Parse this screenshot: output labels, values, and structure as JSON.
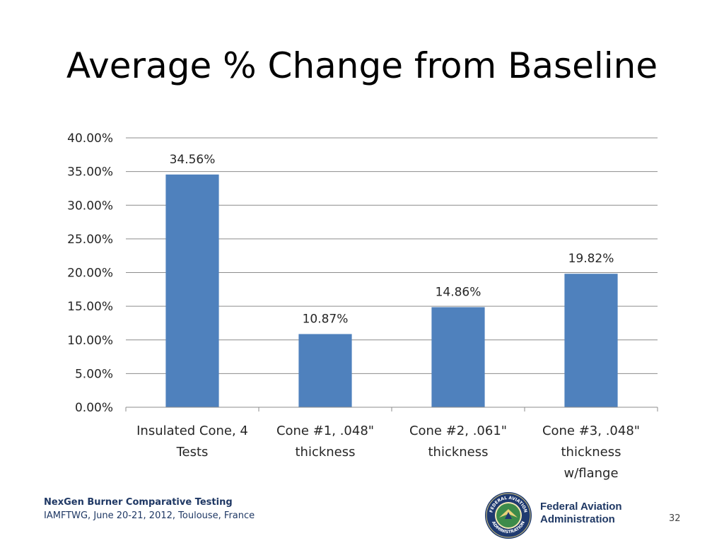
{
  "slide": {
    "title": "Average % Change from Baseline",
    "footer_line1": "NexGen Burner Comparative Testing",
    "footer_line2": "IAMFTWG, June 20-21, 2012, Toulouse, France",
    "agency_line1": "Federal Aviation",
    "agency_line2": "Administration",
    "seal_top_text": "FEDERAL AVIATION",
    "seal_bottom_text": "ADMINISTRATION",
    "page_number": "32"
  },
  "chart_data": {
    "type": "bar",
    "title": "",
    "xlabel": "",
    "ylabel": "",
    "categories": [
      [
        "Insulated Cone, 4",
        "Tests"
      ],
      [
        "Cone #1, .048\"",
        "thickness"
      ],
      [
        "Cone #2, .061\"",
        "thickness"
      ],
      [
        "Cone #3, .048\"",
        "thickness",
        "w/flange"
      ]
    ],
    "values": [
      34.56,
      10.87,
      14.86,
      19.82
    ],
    "data_labels": [
      "34.56%",
      "10.87%",
      "14.86%",
      "19.82%"
    ],
    "ylim": [
      0,
      40
    ],
    "yticks": [
      "0.00%",
      "5.00%",
      "10.00%",
      "15.00%",
      "20.00%",
      "25.00%",
      "30.00%",
      "35.00%",
      "40.00%"
    ],
    "grid": true,
    "legend": "none",
    "colors": {
      "bar": "#4f81bd",
      "grid": "#8c8c8c",
      "axis": "#8c8c8c"
    }
  }
}
